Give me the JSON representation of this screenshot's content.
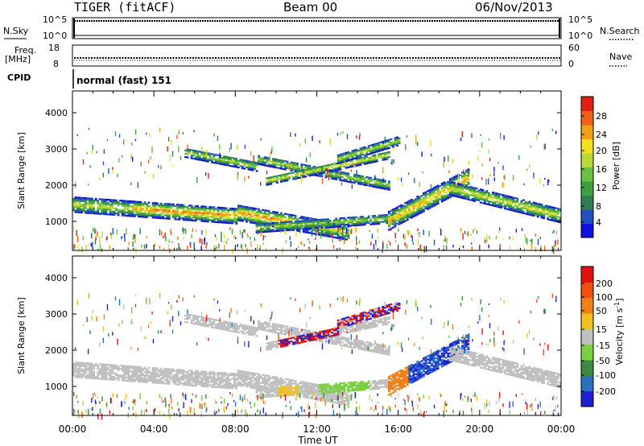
{
  "header": {
    "radar": "TIGER (fitACF)",
    "beam": "Beam 00",
    "date": "06/Nov/2013"
  },
  "strips": {
    "nsky_label": "N.Sky",
    "nsearch_label": "N.Search",
    "nsky_ticks": [
      "10^5",
      "10^0"
    ],
    "freq_label": "Freq.",
    "freq_unit": "[MHz]",
    "freq_ticks": [
      "18",
      "8"
    ],
    "nave_label": "Nave",
    "nave_ticks": [
      "60",
      "0"
    ],
    "cpid_label": "CPID",
    "cpid_value": "normal (fast) 151"
  },
  "chart_data": [
    {
      "type": "heatmap",
      "name": "power",
      "ylabel": "Slant Range [km]",
      "y_ticks": [
        "1000",
        "2000",
        "3000",
        "4000"
      ],
      "ylim": [
        200,
        4600
      ],
      "xlim": [
        0,
        24
      ],
      "colorbar": {
        "label": "Power [dB]",
        "ticks": [
          "4",
          "8",
          "12",
          "16",
          "20",
          "24",
          "28"
        ],
        "colors": [
          "#1010e0",
          "#2050c0",
          "#2f7f50",
          "#3fa040",
          "#6ac040",
          "#b8d838",
          "#f0e020",
          "#f0a018",
          "#f06018",
          "#e02010"
        ]
      }
    },
    {
      "type": "heatmap",
      "name": "velocity",
      "ylabel": "Slant Range [km]",
      "y_ticks": [
        "1000",
        "2000",
        "3000",
        "4000"
      ],
      "ylim": [
        200,
        4600
      ],
      "xlim": [
        0,
        24
      ],
      "xlabel": "Time UT",
      "x_ticks": [
        "00:00",
        "04:00",
        "08:00",
        "12:00",
        "16:00",
        "20:00",
        "00:00"
      ],
      "colorbar": {
        "label": "Velocity [m s-1]",
        "ticks": [
          "200",
          "100",
          "50",
          "15",
          "-15",
          "-50",
          "-100",
          "-200"
        ],
        "colors": [
          "#2020d0",
          "#2870c0",
          "#3a8a40",
          "#7ad040",
          "#c0c0c0",
          "#f0c020",
          "#f08018",
          "#f05010",
          "#e01010"
        ]
      }
    }
  ]
}
